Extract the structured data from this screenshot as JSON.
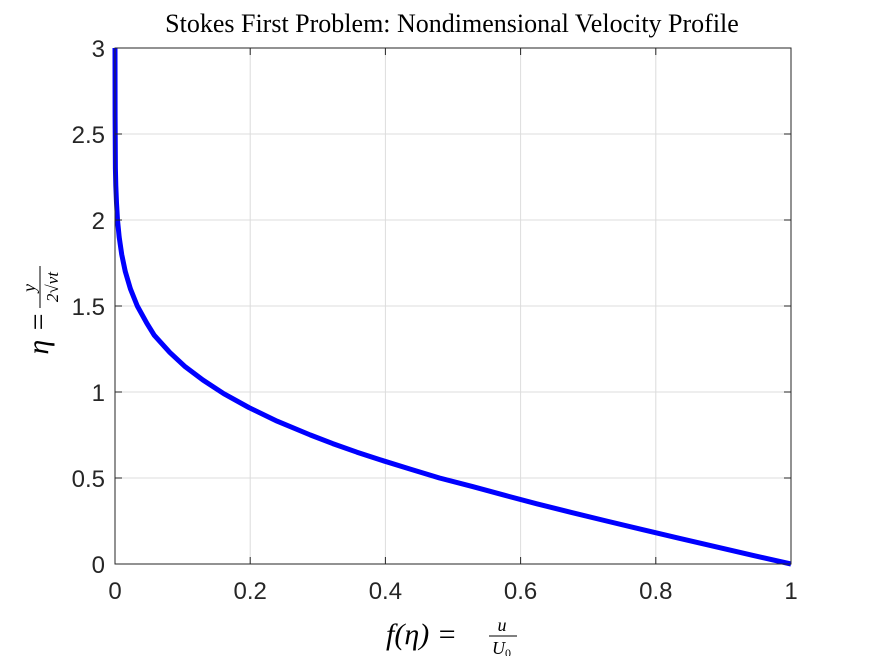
{
  "chart_data": {
    "type": "line",
    "title": "Stokes First Problem: Nondimensional Velocity Profile",
    "xlabel": {
      "lhs": "f(η) = ",
      "frac_num": "u",
      "frac_den_main": "U",
      "frac_den_sub": "0"
    },
    "ylabel": {
      "lhs": "η = ",
      "frac_num": "y",
      "frac_den": "2√νt"
    },
    "xlim": [
      0,
      1
    ],
    "ylim": [
      0,
      3
    ],
    "xticks": [
      0,
      0.2,
      0.4,
      0.6,
      0.8,
      1
    ],
    "yticks": [
      0,
      0.5,
      1,
      1.5,
      2,
      2.5,
      3
    ],
    "xtick_labels": [
      "0",
      "0.2",
      "0.4",
      "0.6",
      "0.8",
      "1"
    ],
    "ytick_labels": [
      "0",
      "0.5",
      "1",
      "1.5",
      "2",
      "2.5",
      "3"
    ],
    "grid": true,
    "box": true,
    "series": [
      {
        "color": "#0000ff",
        "x": [
          1.0,
          0.944,
          0.889,
          0.834,
          0.78,
          0.727,
          0.675,
          0.624,
          0.576,
          0.529,
          0.48,
          0.438,
          0.397,
          0.358,
          0.322,
          0.289,
          0.24,
          0.198,
          0.161,
          0.13,
          0.103,
          0.081,
          0.058,
          0.047,
          0.033,
          0.0228,
          0.0153,
          0.0099,
          0.0062,
          0.0037,
          0.0022,
          0.0012,
          0.0006,
          0.0001,
          0.0
        ],
        "y": [
          0.0,
          0.05,
          0.1,
          0.15,
          0.2,
          0.25,
          0.3,
          0.35,
          0.4,
          0.45,
          0.5,
          0.55,
          0.6,
          0.65,
          0.7,
          0.75,
          0.83,
          0.91,
          0.99,
          1.07,
          1.15,
          1.23,
          1.33,
          1.4,
          1.5,
          1.6,
          1.7,
          1.8,
          1.9,
          2.0,
          2.1,
          2.2,
          2.3,
          2.6,
          3.0
        ]
      }
    ]
  }
}
